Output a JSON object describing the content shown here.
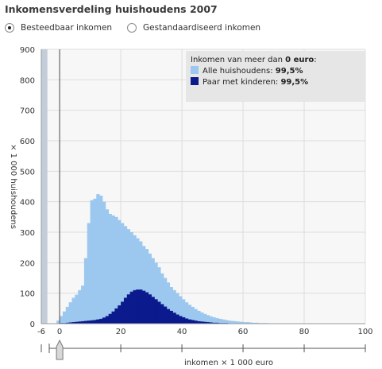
{
  "title": "Inkomensverdeling huishoudens 2007",
  "options": [
    {
      "label": "Besteedbaar inkomen",
      "selected": true
    },
    {
      "label": "Gestandaardiseerd inkomen",
      "selected": false
    }
  ],
  "colors": {
    "alle": "#9cc8ef",
    "kinderen": "#0b1a8c",
    "negative_bar": "#c3cdd9",
    "plot_bg": "#f7f7f7",
    "legend_bg": "#e6e6e6"
  },
  "legend": {
    "heading_prefix": "Inkomen van meer dan",
    "heading_value": "0 euro",
    "heading_suffix": ":",
    "items": [
      {
        "label": "Alle huishoudens:",
        "value": "99,5%",
        "series": "alle"
      },
      {
        "label": "Paar met kinderen:",
        "value": "99,5%",
        "series": "kinderen"
      }
    ]
  },
  "slider": {
    "value": 0
  },
  "chart_data": {
    "type": "bar",
    "title": "Inkomensverdeling huishoudens 2007",
    "xlabel": "inkomen × 1 000 euro",
    "ylabel": "× 1 000 huishoudens",
    "xlim": [
      -6,
      100
    ],
    "ylim": [
      0,
      900
    ],
    "x_ticks": [
      "-6",
      "0",
      "20",
      "40",
      "60",
      "80",
      "100"
    ],
    "x_tick_values": [
      -6,
      0,
      20,
      40,
      60,
      80,
      100
    ],
    "y_ticks": [
      "0",
      "100",
      "200",
      "300",
      "400",
      "500",
      "600",
      "700",
      "800",
      "900"
    ],
    "y_tick_values": [
      0,
      100,
      200,
      300,
      400,
      500,
      600,
      700,
      800,
      900
    ],
    "grid": true,
    "legend_position": "top-right",
    "bin_start": -1,
    "bin_width": 1,
    "negative_bar": {
      "x0": -6,
      "x1": -4,
      "value": 900
    },
    "series": [
      {
        "name": "Alle huishoudens",
        "values": [
          10,
          25,
          40,
          55,
          70,
          85,
          95,
          110,
          125,
          215,
          330,
          405,
          410,
          425,
          420,
          400,
          375,
          360,
          355,
          350,
          340,
          330,
          320,
          310,
          300,
          290,
          280,
          270,
          255,
          245,
          230,
          215,
          200,
          185,
          165,
          150,
          135,
          120,
          110,
          100,
          90,
          80,
          70,
          62,
          55,
          48,
          42,
          37,
          32,
          28,
          24,
          21,
          18,
          16,
          14,
          12,
          10,
          9,
          8,
          7,
          6,
          5,
          5,
          4,
          3,
          3,
          2,
          2,
          2,
          1,
          1,
          1,
          1,
          1,
          1,
          1,
          1,
          0,
          0,
          0,
          0,
          0,
          0,
          0,
          0,
          0,
          0,
          0,
          0,
          0,
          0,
          0,
          0,
          0,
          0,
          0,
          0,
          0,
          0,
          0,
          0
        ]
      },
      {
        "name": "Paar met kinderen",
        "values": [
          0,
          2,
          2,
          3,
          4,
          5,
          6,
          7,
          8,
          9,
          10,
          11,
          12,
          14,
          16,
          20,
          25,
          32,
          40,
          50,
          60,
          72,
          85,
          96,
          105,
          110,
          112,
          112,
          108,
          103,
          96,
          88,
          80,
          72,
          64,
          56,
          48,
          42,
          36,
          30,
          25,
          21,
          17,
          14,
          12,
          10,
          8,
          7,
          6,
          5,
          4,
          3,
          3,
          2,
          2,
          2,
          1,
          1,
          1,
          1,
          1,
          1,
          1,
          1,
          0,
          0,
          0,
          0,
          0,
          0,
          0,
          0,
          0,
          0,
          0,
          0,
          0,
          0,
          0,
          0,
          0,
          0,
          0,
          0,
          0,
          0,
          0,
          0,
          0,
          0,
          0,
          0,
          0,
          0,
          0,
          0,
          0,
          0,
          0,
          0,
          0
        ]
      }
    ]
  }
}
